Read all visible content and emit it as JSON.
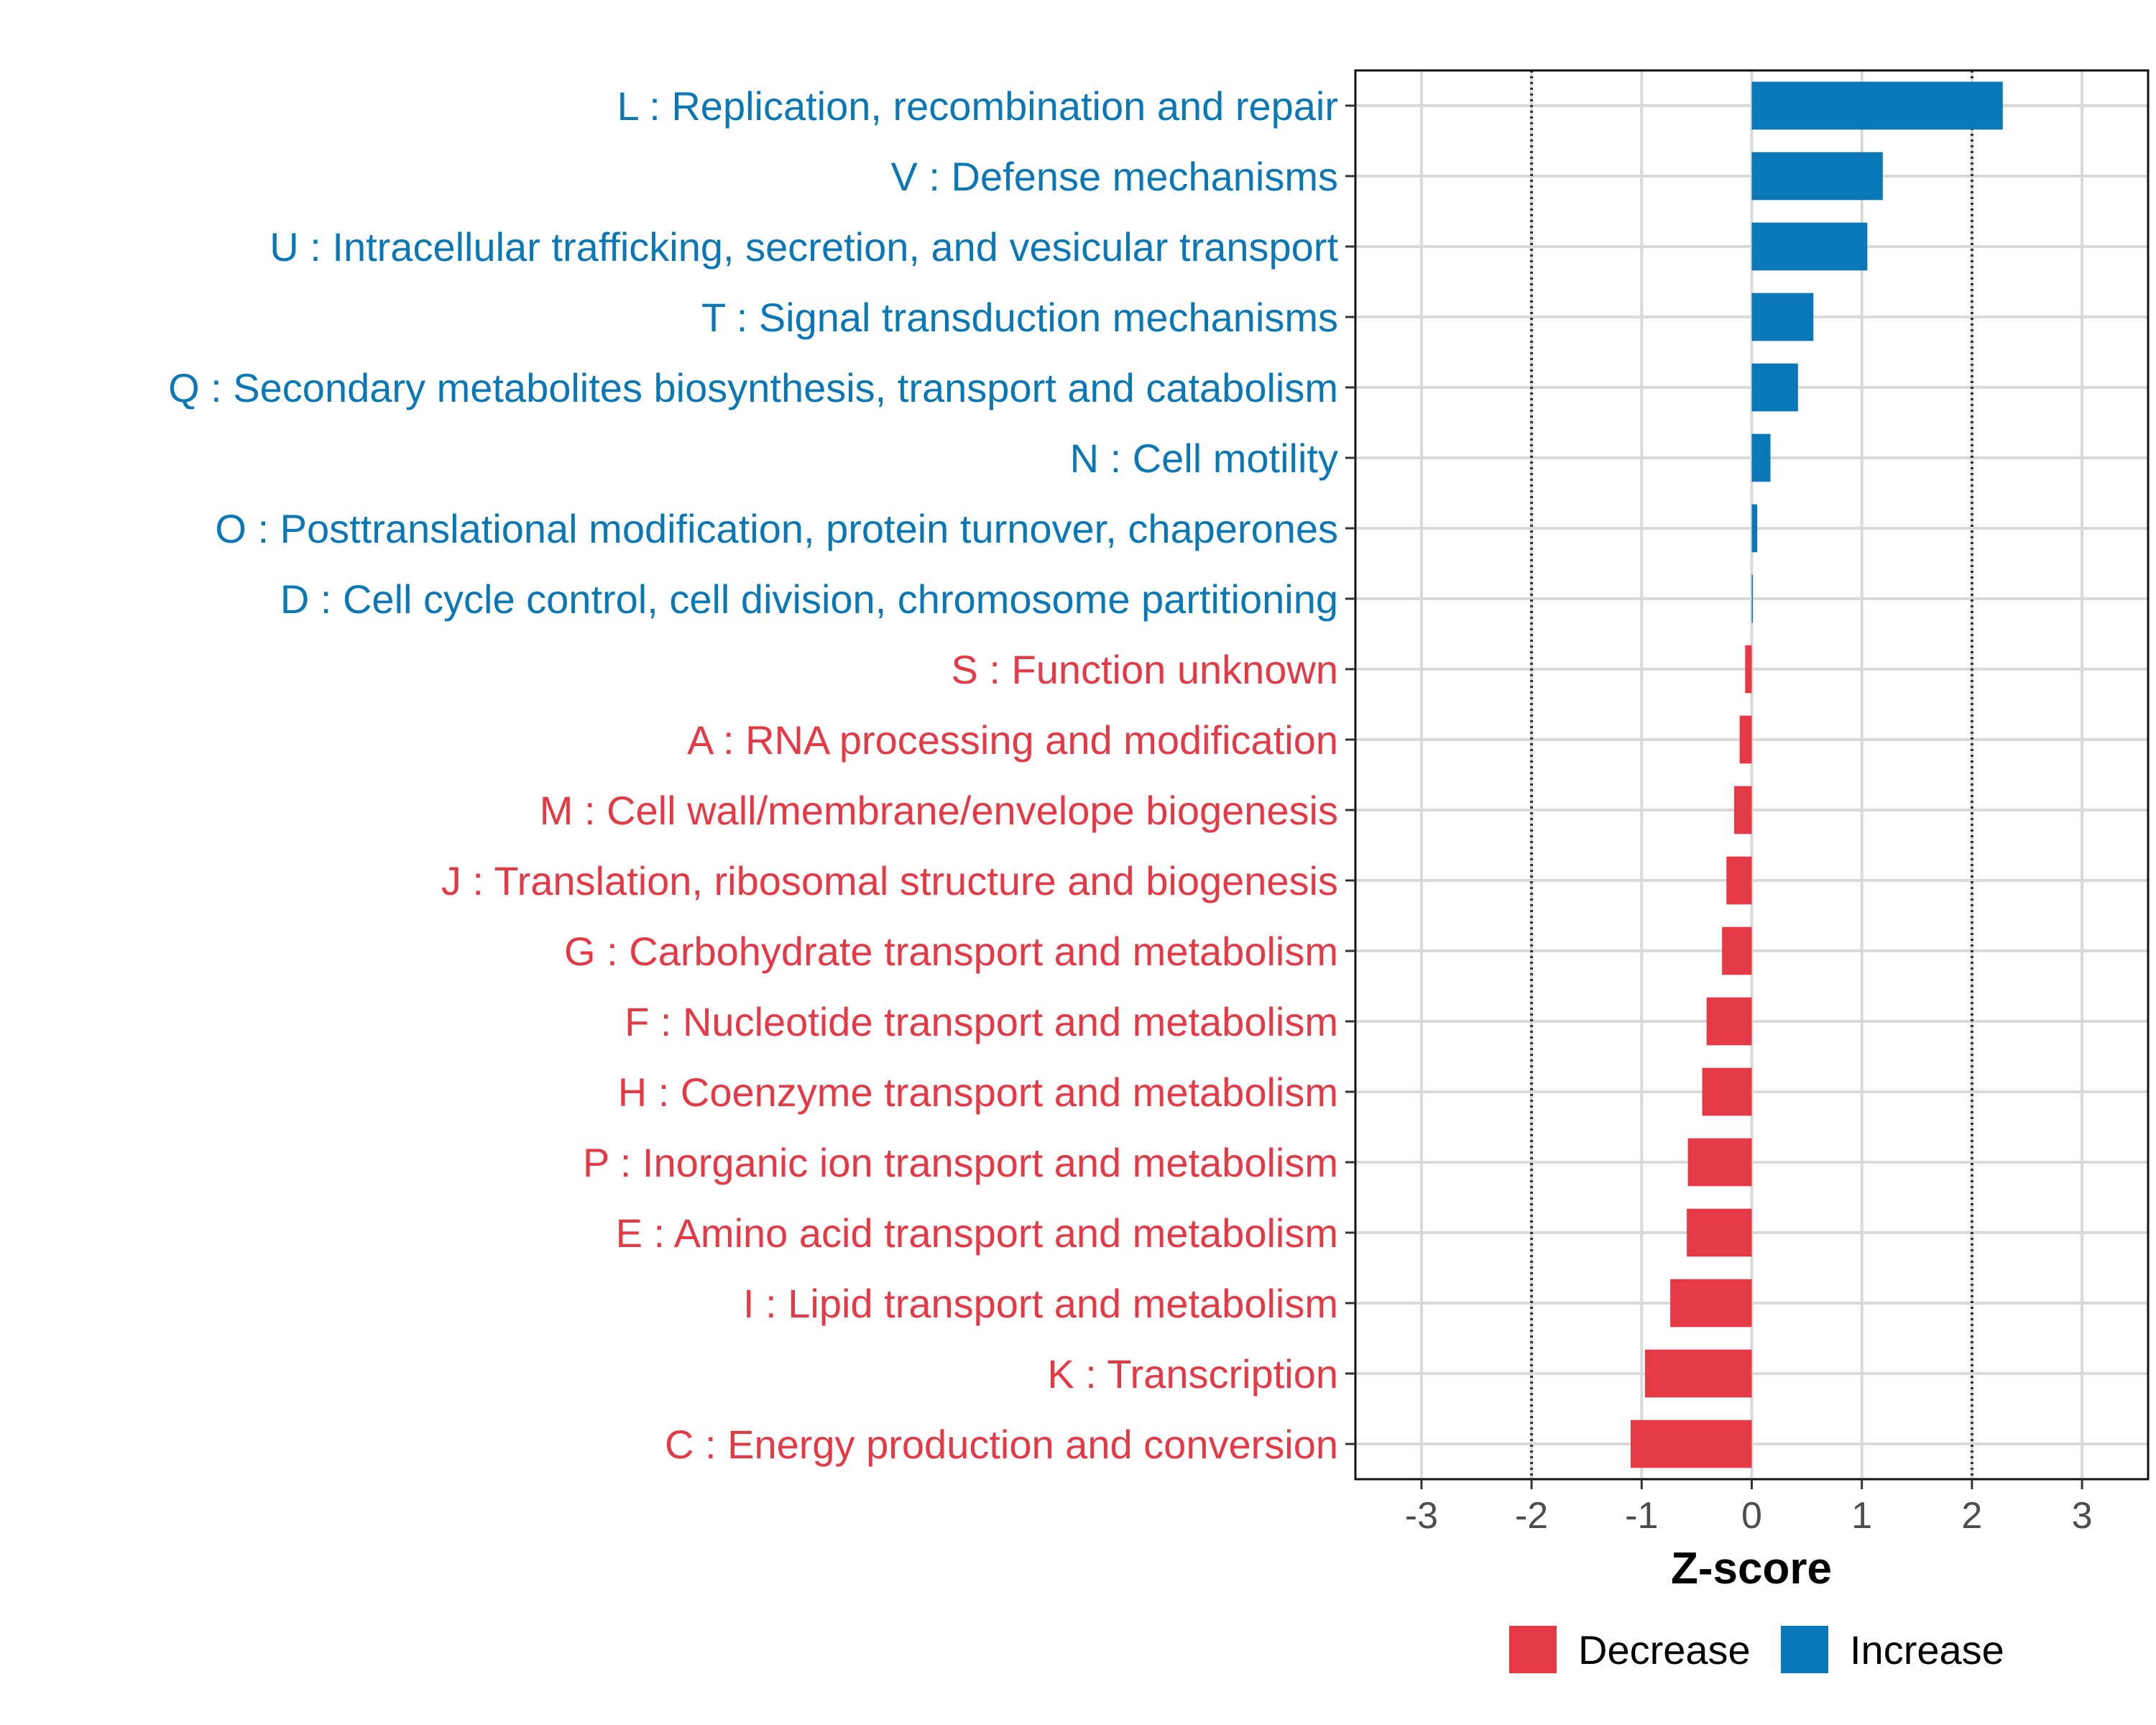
{
  "chart_data": {
    "type": "bar",
    "orientation": "horizontal",
    "xlabel": "Z-score",
    "ylabel": "",
    "xlim": [
      -3.6,
      3.6
    ],
    "xticks": [
      -3,
      -2,
      -1,
      0,
      1,
      2,
      3
    ],
    "reference_lines": [
      -2,
      2
    ],
    "grid": true,
    "legend_position": "bottom",
    "colors": {
      "Decrease": "#e63946",
      "Increase": "#0a77b6"
    },
    "legend": [
      {
        "label": "Decrease",
        "color": "#e63946"
      },
      {
        "label": "Increase",
        "color": "#0a77b6"
      }
    ],
    "categories": [
      "L : Replication, recombination and repair",
      "V : Defense mechanisms",
      "U : Intracellular trafficking, secretion, and vesicular transport",
      "T : Signal transduction mechanisms",
      "Q : Secondary metabolites biosynthesis, transport and catabolism",
      "N : Cell motility",
      "O : Posttranslational modification, protein turnover, chaperones",
      "D : Cell cycle control, cell division, chromosome partitioning",
      "S : Function unknown",
      "A : RNA processing and modification",
      "M : Cell wall/membrane/envelope biogenesis",
      "J : Translation, ribosomal structure and biogenesis",
      "G : Carbohydrate transport and metabolism",
      "F : Nucleotide transport and metabolism",
      "H : Coenzyme transport and metabolism",
      "P : Inorganic ion transport and metabolism",
      "E : Amino acid transport and metabolism",
      "I : Lipid transport and metabolism",
      "K : Transcription",
      "C : Energy production and conversion"
    ],
    "values": [
      2.28,
      1.19,
      1.05,
      0.56,
      0.42,
      0.17,
      0.05,
      0.01,
      -0.06,
      -0.11,
      -0.16,
      -0.23,
      -0.27,
      -0.41,
      -0.45,
      -0.58,
      -0.59,
      -0.74,
      -0.97,
      -1.1
    ],
    "groups": [
      "Increase",
      "Increase",
      "Increase",
      "Increase",
      "Increase",
      "Increase",
      "Increase",
      "Increase",
      "Decrease",
      "Decrease",
      "Decrease",
      "Decrease",
      "Decrease",
      "Decrease",
      "Decrease",
      "Decrease",
      "Decrease",
      "Decrease",
      "Decrease",
      "Decrease"
    ]
  }
}
